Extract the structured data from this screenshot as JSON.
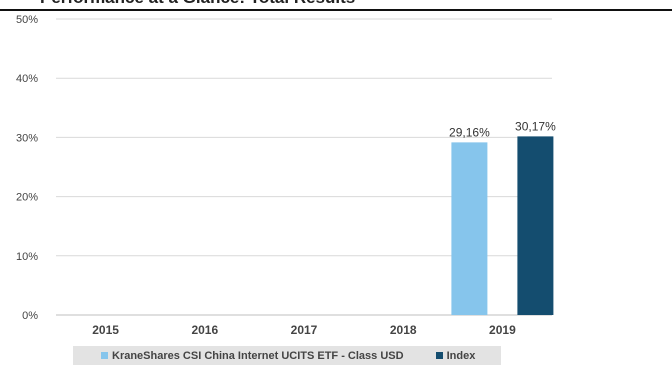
{
  "page": {
    "cut_title": "Performance at a Glance: Total Results"
  },
  "colors": {
    "fund": "#86c5ec",
    "index": "#144d6f",
    "grid": "#d9d9d9"
  },
  "chart_data": {
    "type": "bar",
    "categories": [
      "2015",
      "2016",
      "2017",
      "2018",
      "2019"
    ],
    "series": [
      {
        "name": "KraneShares CSI China Internet UCITS ETF - Class USD",
        "values": [
          null,
          null,
          null,
          null,
          29.16
        ],
        "labels": [
          null,
          null,
          null,
          null,
          "29,16%"
        ]
      },
      {
        "name": "Index",
        "values": [
          null,
          null,
          null,
          null,
          30.17
        ],
        "labels": [
          null,
          null,
          null,
          null,
          "30,17%"
        ]
      }
    ],
    "yticks": [
      "0%",
      "10%",
      "20%",
      "30%",
      "40%",
      "50%"
    ],
    "ylim": [
      0,
      50
    ],
    "grid": true,
    "legend_position": "bottom",
    "title": "",
    "xlabel": "",
    "ylabel": ""
  }
}
